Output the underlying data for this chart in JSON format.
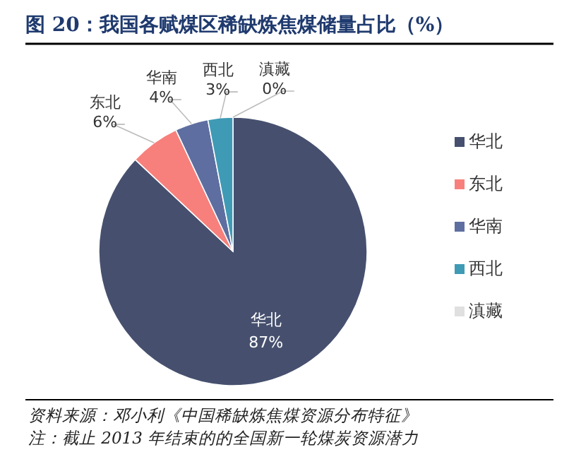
{
  "chart_data": {
    "type": "pie",
    "title": "图 20：我国各赋煤区稀缺炼焦煤储量占比（%）",
    "categories": [
      "华北",
      "东北",
      "华南",
      "西北",
      "滇藏"
    ],
    "values": [
      87,
      6,
      4,
      3,
      0
    ],
    "value_labels": [
      "87%",
      "6%",
      "4%",
      "3%",
      "0%"
    ],
    "colors": [
      "#46506e",
      "#f7807c",
      "#5e6ea0",
      "#3f9ab5",
      "#e0e0e0"
    ],
    "legend": "right",
    "annotations": [
      "资料来源：邓小利《中国稀缺炼焦煤资源分布特征》",
      "注：截止 2013 年结束的的全国新一轮煤炭资源潜力"
    ]
  }
}
